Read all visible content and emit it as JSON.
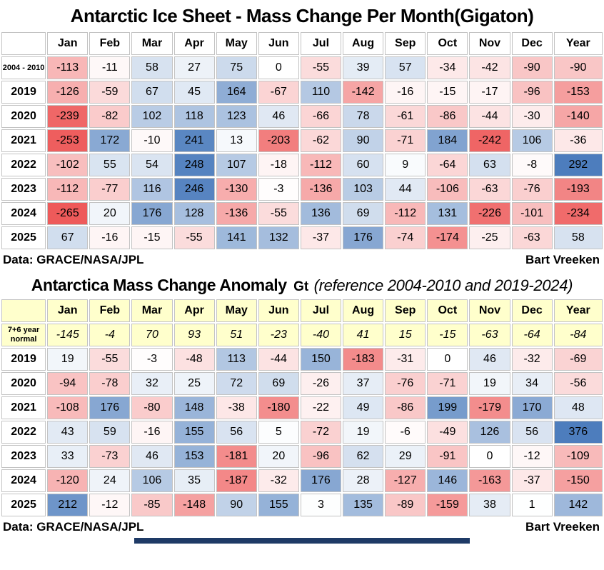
{
  "chart_data": [
    {
      "type": "heatmap",
      "title": "Antarctic Ice Sheet - Mass Change Per Month(Gigaton)",
      "columns": [
        "Jan",
        "Feb",
        "Mar",
        "Apr",
        "May",
        "Jun",
        "Jul",
        "Aug",
        "Sep",
        "Oct",
        "Nov",
        "Dec",
        "Year"
      ],
      "rows": [
        {
          "label": "2004 - 2010",
          "small_label": true,
          "values": [
            -113,
            -11,
            58,
            27,
            75,
            0,
            -55,
            39,
            57,
            -34,
            -42,
            -90,
            -90
          ]
        },
        {
          "label": "2019",
          "values": [
            -126,
            -59,
            67,
            45,
            164,
            -67,
            110,
            -142,
            -16,
            -15,
            -17,
            -96,
            -153
          ]
        },
        {
          "label": "2020",
          "values": [
            -239,
            -82,
            102,
            118,
            123,
            46,
            -66,
            78,
            -61,
            -86,
            -44,
            -30,
            -140
          ]
        },
        {
          "label": "2021",
          "values": [
            -253,
            172,
            -10,
            241,
            13,
            -203,
            -62,
            90,
            -71,
            184,
            -242,
            106,
            -36
          ]
        },
        {
          "label": "2022",
          "values": [
            -102,
            55,
            54,
            248,
            107,
            -18,
            -112,
            60,
            9,
            -64,
            63,
            -8,
            292
          ]
        },
        {
          "label": "2023",
          "values": [
            -112,
            -77,
            116,
            246,
            -130,
            -3,
            -136,
            103,
            44,
            -106,
            -63,
            -76,
            -193
          ]
        },
        {
          "label": "2024",
          "values": [
            -265,
            20,
            176,
            128,
            -136,
            -55,
            136,
            69,
            -112,
            131,
            -226,
            -101,
            -234
          ]
        },
        {
          "label": "2025",
          "values": [
            67,
            -16,
            -15,
            -55,
            141,
            132,
            -37,
            176,
            -74,
            -174,
            -25,
            -63,
            58
          ]
        }
      ],
      "color_scale": {
        "min_color": "#ee5a5a",
        "mid_color": "#ffffff",
        "max_color": "#4d7dbd",
        "domain": [
          -260,
          0,
          260
        ]
      },
      "footer_left": "Data: GRACE/NASA/JPL",
      "footer_right": "Bart Vreeken"
    },
    {
      "type": "heatmap",
      "title_main": "Antarctica Mass Change Anomaly",
      "title_unit": "Gt",
      "title_ref": "(reference 2004-2010 and 2019-2024)",
      "columns": [
        "Jan",
        "Feb",
        "Mar",
        "Apr",
        "May",
        "Jun",
        "Jul",
        "Aug",
        "Sep",
        "Oct",
        "Nov",
        "Dec",
        "Year"
      ],
      "normal_row": {
        "label": "7+6 year normal",
        "values": [
          -145,
          -4,
          70,
          93,
          51,
          -23,
          -40,
          41,
          15,
          -15,
          -63,
          -64,
          -84
        ]
      },
      "rows": [
        {
          "label": "2019",
          "values": [
            19,
            -55,
            -3,
            -48,
            113,
            -44,
            150,
            -183,
            -31,
            0,
            46,
            -32,
            -69
          ]
        },
        {
          "label": "2020",
          "values": [
            -94,
            -78,
            32,
            25,
            72,
            69,
            -26,
            37,
            -76,
            -71,
            19,
            34,
            -56
          ]
        },
        {
          "label": "2021",
          "values": [
            -108,
            176,
            -80,
            148,
            -38,
            -180,
            -22,
            49,
            -86,
            199,
            -179,
            170,
            48
          ]
        },
        {
          "label": "2022",
          "values": [
            43,
            59,
            -16,
            155,
            56,
            5,
            -72,
            19,
            -6,
            -49,
            126,
            56,
            376
          ]
        },
        {
          "label": "2023",
          "values": [
            33,
            -73,
            46,
            153,
            -181,
            20,
            -96,
            62,
            29,
            -91,
            0,
            -12,
            -109
          ]
        },
        {
          "label": "2024",
          "values": [
            -120,
            24,
            106,
            35,
            -187,
            -32,
            176,
            28,
            -127,
            146,
            -163,
            -37,
            -150
          ]
        },
        {
          "label": "2025",
          "values": [
            212,
            -12,
            -85,
            -148,
            90,
            155,
            3,
            135,
            -89,
            -159,
            38,
            1,
            142
          ]
        }
      ],
      "header_bg": "#ffffcc",
      "color_scale": {
        "min_color": "#ee5a5a",
        "mid_color": "#ffffff",
        "max_color": "#4d7dbd",
        "domain": [
          -260,
          0,
          260
        ]
      },
      "footer_left": "Data: GRACE/NASA/JPL",
      "footer_right": "Bart Vreeken"
    }
  ]
}
